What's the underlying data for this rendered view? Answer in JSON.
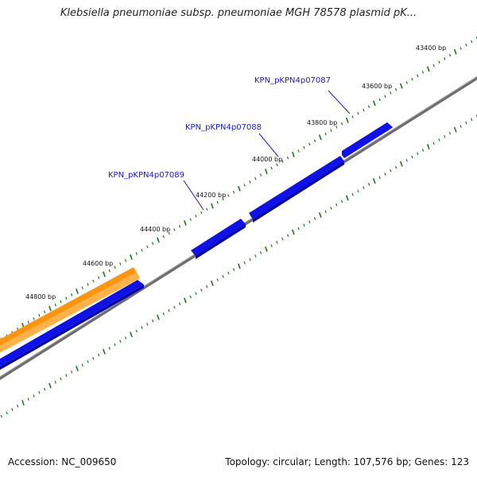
{
  "title": "Klebsiella pneumoniae subsp. pneumoniae MGH 78578 plasmid pK...",
  "footer": {
    "accession_label": "Accession: NC_009650",
    "summary": "Topology: circular; Length: 107,576 bp; Genes: 123"
  },
  "colors": {
    "backbone": "#7a7a7a",
    "forward_gene": "#1010e0",
    "reverse_gene": "#1010e0",
    "highlight_gene": "#ff9b1a",
    "tick": "#1a7a1a",
    "label": "#1a1acc"
  },
  "position_labels": [
    {
      "text": "43400 bp"
    },
    {
      "text": "43600 bp"
    },
    {
      "text": "43800 bp"
    },
    {
      "text": "44000 bp"
    },
    {
      "text": "44200 bp"
    },
    {
      "text": "44400 bp"
    },
    {
      "text": "44600 bp"
    },
    {
      "text": "44800 bp"
    }
  ],
  "gene_labels": [
    {
      "text": "KPN_pKPN4p07087"
    },
    {
      "text": "KPN_pKPN4p07088"
    },
    {
      "text": "KPN_pKPN4p07089"
    }
  ]
}
